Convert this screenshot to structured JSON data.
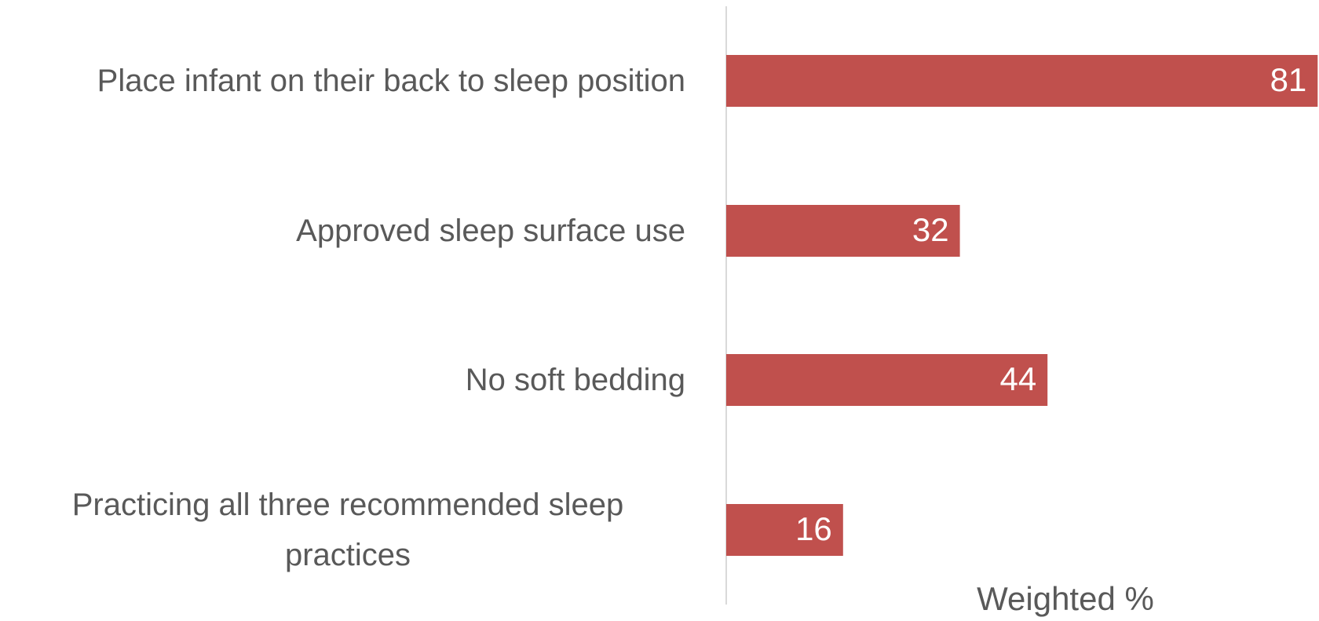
{
  "chart_data": {
    "type": "bar",
    "orientation": "horizontal",
    "categories": [
      "Place infant on their back to sleep position",
      "Approved sleep surface use",
      "No soft bedding",
      "Practicing all three recommended sleep practices"
    ],
    "values": [
      81,
      32,
      44,
      16
    ],
    "color": "#c0504d",
    "x_label": "Weighted %"
  }
}
